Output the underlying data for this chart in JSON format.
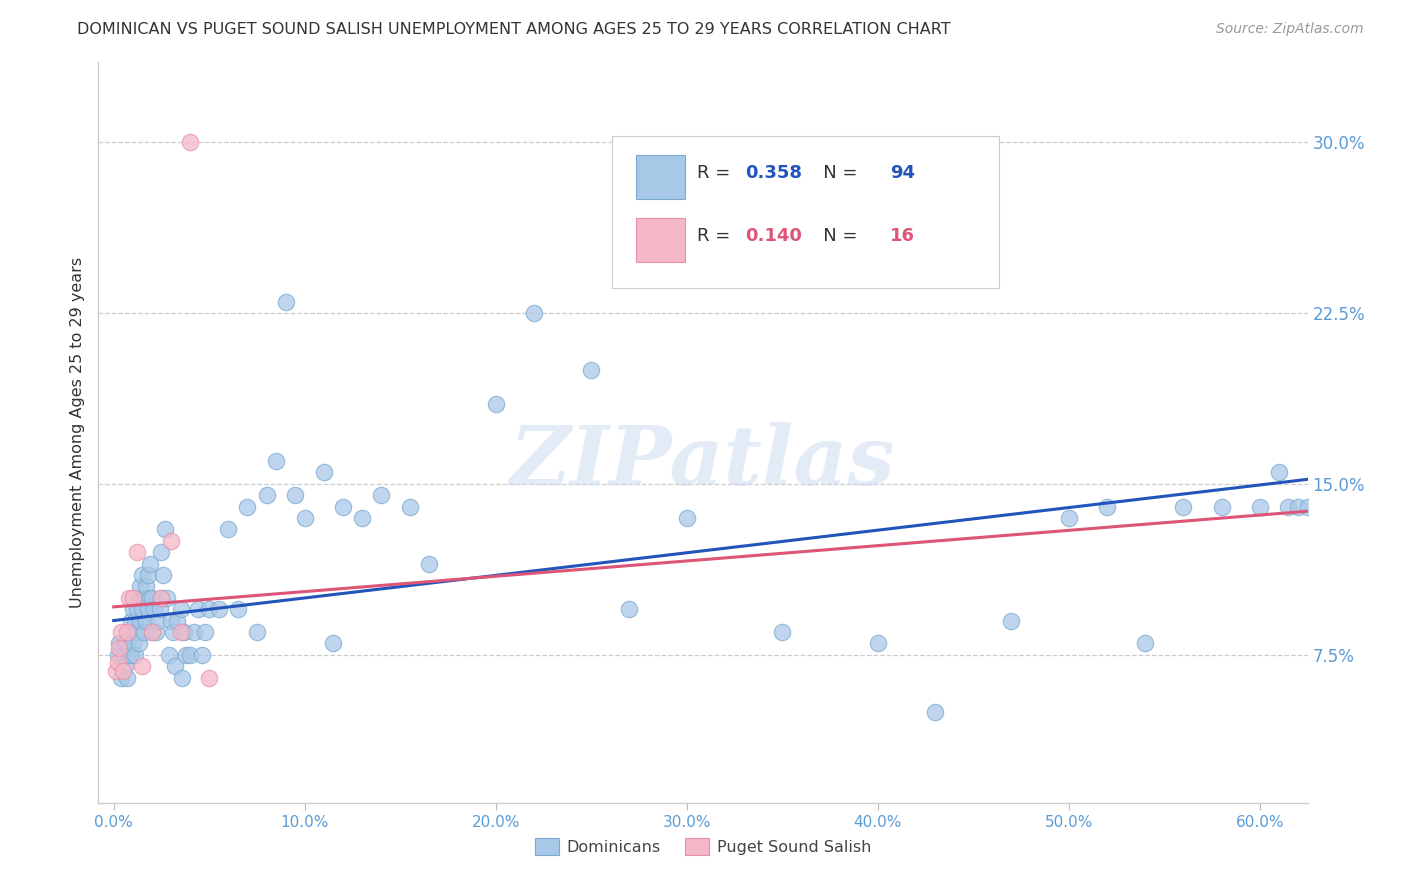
{
  "title": "DOMINICAN VS PUGET SOUND SALISH UNEMPLOYMENT AMONG AGES 25 TO 29 YEARS CORRELATION CHART",
  "source": "Source: ZipAtlas.com",
  "ylabel": "Unemployment Among Ages 25 to 29 years",
  "xlabel_ticks": [
    "0.0%",
    "10.0%",
    "20.0%",
    "30.0%",
    "40.0%",
    "50.0%",
    "60.0%"
  ],
  "xlabel_vals": [
    0.0,
    0.1,
    0.2,
    0.3,
    0.4,
    0.5,
    0.6
  ],
  "yticks_labels": [
    "7.5%",
    "15.0%",
    "22.5%",
    "30.0%"
  ],
  "yticks_vals": [
    0.075,
    0.15,
    0.225,
    0.3
  ],
  "xlim": [
    -0.008,
    0.625
  ],
  "ylim": [
    0.01,
    0.335
  ],
  "blue_R": "0.358",
  "blue_N": "94",
  "pink_R": "0.140",
  "pink_N": "16",
  "blue_fill": "#A8C8E8",
  "pink_fill": "#F4B8C8",
  "blue_edge": "#7AAAD0",
  "pink_edge": "#E890A8",
  "blue_line_color": "#2255BB",
  "pink_line_color": "#DD5577",
  "legend_label_blue": "Dominicans",
  "legend_label_pink": "Puget Sound Salish",
  "watermark": "ZIPatlas",
  "blue_x": [
    0.002,
    0.003,
    0.004,
    0.005,
    0.006,
    0.006,
    0.007,
    0.007,
    0.008,
    0.008,
    0.009,
    0.009,
    0.01,
    0.01,
    0.011,
    0.011,
    0.012,
    0.012,
    0.013,
    0.013,
    0.014,
    0.014,
    0.015,
    0.015,
    0.016,
    0.016,
    0.017,
    0.017,
    0.018,
    0.018,
    0.019,
    0.019,
    0.02,
    0.02,
    0.021,
    0.022,
    0.023,
    0.024,
    0.025,
    0.025,
    0.026,
    0.027,
    0.028,
    0.029,
    0.03,
    0.031,
    0.032,
    0.033,
    0.035,
    0.036,
    0.037,
    0.038,
    0.04,
    0.042,
    0.044,
    0.046,
    0.048,
    0.05,
    0.055,
    0.06,
    0.065,
    0.07,
    0.075,
    0.08,
    0.085,
    0.09,
    0.095,
    0.1,
    0.11,
    0.115,
    0.12,
    0.13,
    0.14,
    0.155,
    0.165,
    0.2,
    0.22,
    0.25,
    0.27,
    0.3,
    0.35,
    0.4,
    0.43,
    0.47,
    0.5,
    0.52,
    0.54,
    0.56,
    0.58,
    0.6,
    0.61,
    0.615,
    0.62,
    0.625
  ],
  "blue_y": [
    0.075,
    0.08,
    0.065,
    0.075,
    0.07,
    0.08,
    0.065,
    0.08,
    0.075,
    0.085,
    0.075,
    0.09,
    0.08,
    0.095,
    0.075,
    0.09,
    0.085,
    0.095,
    0.08,
    0.1,
    0.09,
    0.105,
    0.095,
    0.11,
    0.085,
    0.1,
    0.09,
    0.105,
    0.095,
    0.11,
    0.1,
    0.115,
    0.085,
    0.1,
    0.095,
    0.085,
    0.09,
    0.095,
    0.1,
    0.12,
    0.11,
    0.13,
    0.1,
    0.075,
    0.09,
    0.085,
    0.07,
    0.09,
    0.095,
    0.065,
    0.085,
    0.075,
    0.075,
    0.085,
    0.095,
    0.075,
    0.085,
    0.095,
    0.095,
    0.13,
    0.095,
    0.14,
    0.085,
    0.145,
    0.16,
    0.23,
    0.145,
    0.135,
    0.155,
    0.08,
    0.14,
    0.135,
    0.145,
    0.14,
    0.115,
    0.185,
    0.225,
    0.2,
    0.095,
    0.135,
    0.085,
    0.08,
    0.05,
    0.09,
    0.135,
    0.14,
    0.08,
    0.14,
    0.14,
    0.14,
    0.155,
    0.14,
    0.14,
    0.14
  ],
  "pink_x": [
    0.001,
    0.002,
    0.003,
    0.004,
    0.005,
    0.007,
    0.008,
    0.01,
    0.012,
    0.015,
    0.02,
    0.025,
    0.03,
    0.035,
    0.04,
    0.05
  ],
  "pink_y": [
    0.068,
    0.072,
    0.078,
    0.085,
    0.068,
    0.085,
    0.1,
    0.1,
    0.12,
    0.07,
    0.085,
    0.1,
    0.125,
    0.085,
    0.3,
    0.065
  ],
  "blue_line_x": [
    0.0,
    0.625
  ],
  "blue_line_y": [
    0.09,
    0.152
  ],
  "pink_line_x": [
    0.0,
    0.625
  ],
  "pink_line_y": [
    0.096,
    0.138
  ]
}
